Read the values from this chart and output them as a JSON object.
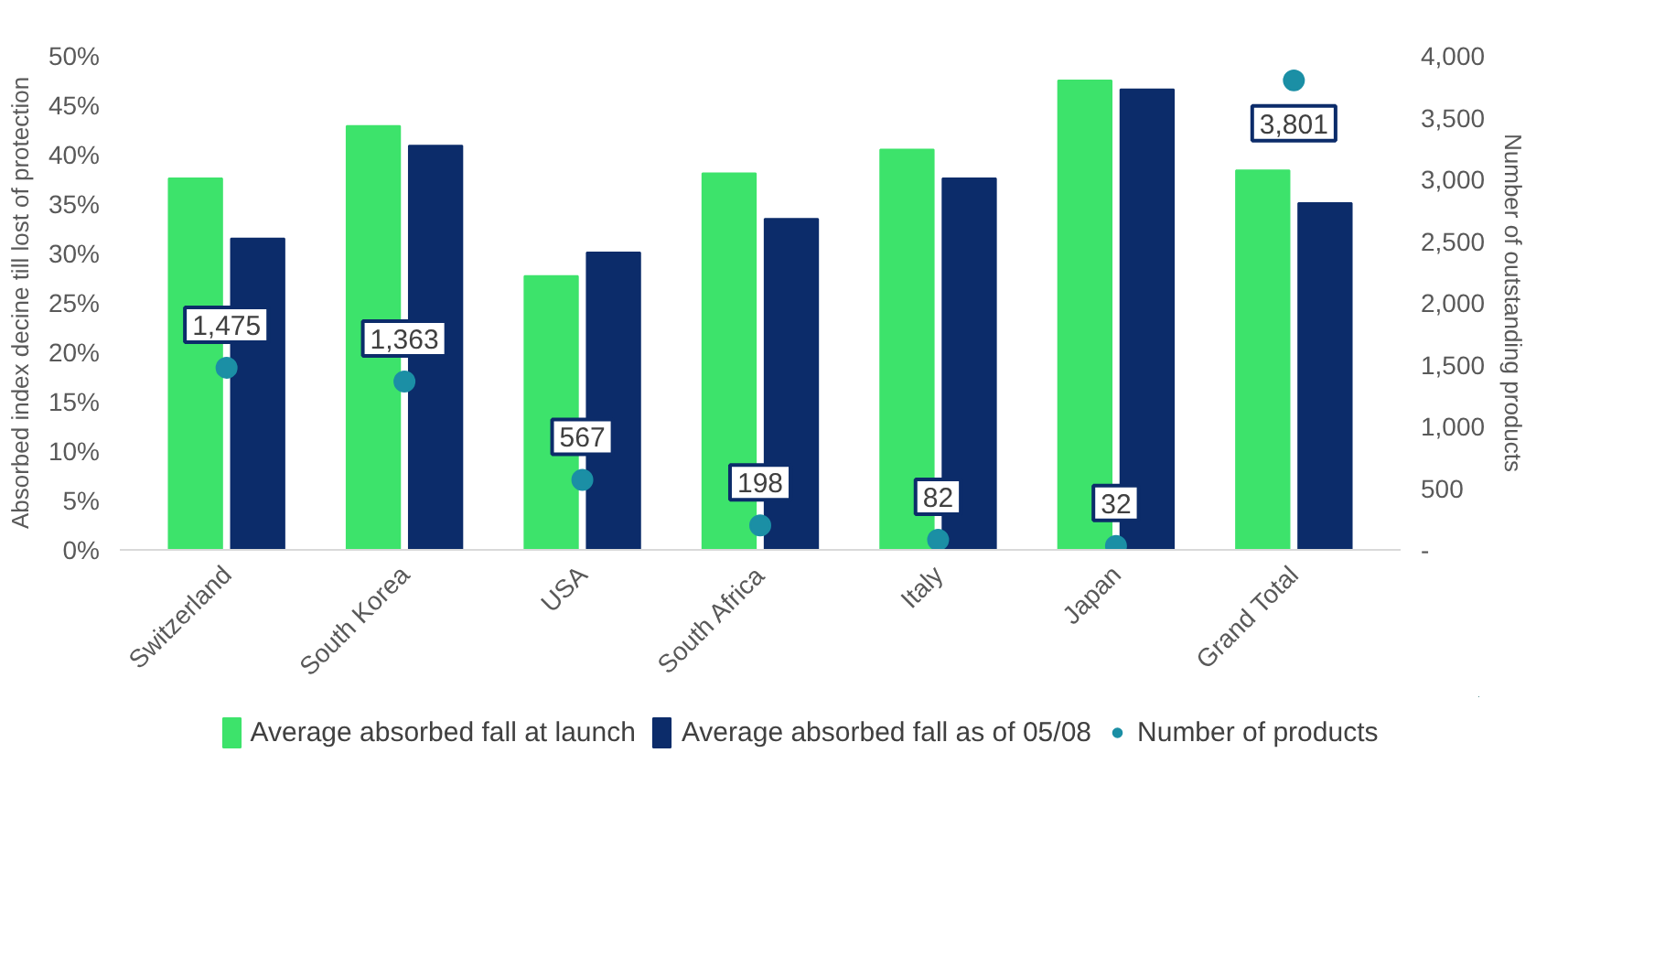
{
  "chart_data": {
    "type": "bar",
    "categories": [
      "Switzerland",
      "South Korea",
      "USA",
      "South Africa",
      "Italy",
      "Japan",
      "Grand Total"
    ],
    "ylabel": "Absorbed index decine till lost of protection",
    "y2label": "Number of outstanding products",
    "ylim": [
      0,
      0.5
    ],
    "yticks": [
      {
        "value": 0,
        "label": "0%"
      },
      {
        "value": 0.05,
        "label": "5%"
      },
      {
        "value": 0.1,
        "label": "10%"
      },
      {
        "value": 0.15,
        "label": "15%"
      },
      {
        "value": 0.2,
        "label": "20%"
      },
      {
        "value": 0.25,
        "label": "25%"
      },
      {
        "value": 0.3,
        "label": "30%"
      },
      {
        "value": 0.35,
        "label": "35%"
      },
      {
        "value": 0.4,
        "label": "40%"
      },
      {
        "value": 0.45,
        "label": "45%"
      },
      {
        "value": 0.5,
        "label": "50%"
      }
    ],
    "y2lim": [
      0,
      4000
    ],
    "y2ticks": [
      {
        "value": 0,
        "label": "-"
      },
      {
        "value": 500,
        "label": "500"
      },
      {
        "value": 1000,
        "label": "1,000"
      },
      {
        "value": 1500,
        "label": "1,500"
      },
      {
        "value": 2000,
        "label": "2,000"
      },
      {
        "value": 2500,
        "label": "2,500"
      },
      {
        "value": 3000,
        "label": "3,000"
      },
      {
        "value": 3500,
        "label": "3,500"
      },
      {
        "value": 4000,
        "label": "4,000"
      }
    ],
    "series": [
      {
        "name": "Average absorbed fall at launch",
        "color": "#3de36b",
        "values": [
          0.376,
          0.429,
          0.277,
          0.381,
          0.405,
          0.475,
          0.384
        ]
      },
      {
        "name": "Average absorbed fall as of 05/08",
        "color": "#0c2c6a",
        "values": [
          0.315,
          0.409,
          0.301,
          0.335,
          0.376,
          0.466,
          0.351
        ]
      },
      {
        "name": "Number of products",
        "type": "scatter",
        "axis": "y2",
        "color": "#1b8fa5",
        "marker": "circle",
        "values": [
          1475,
          1363,
          567,
          198,
          82,
          32,
          3801
        ],
        "value_labels": [
          "1,475",
          "1,363",
          "567",
          "198",
          "82",
          "32",
          "3,801"
        ]
      }
    ],
    "legend": "bottom",
    "grid": false
  }
}
